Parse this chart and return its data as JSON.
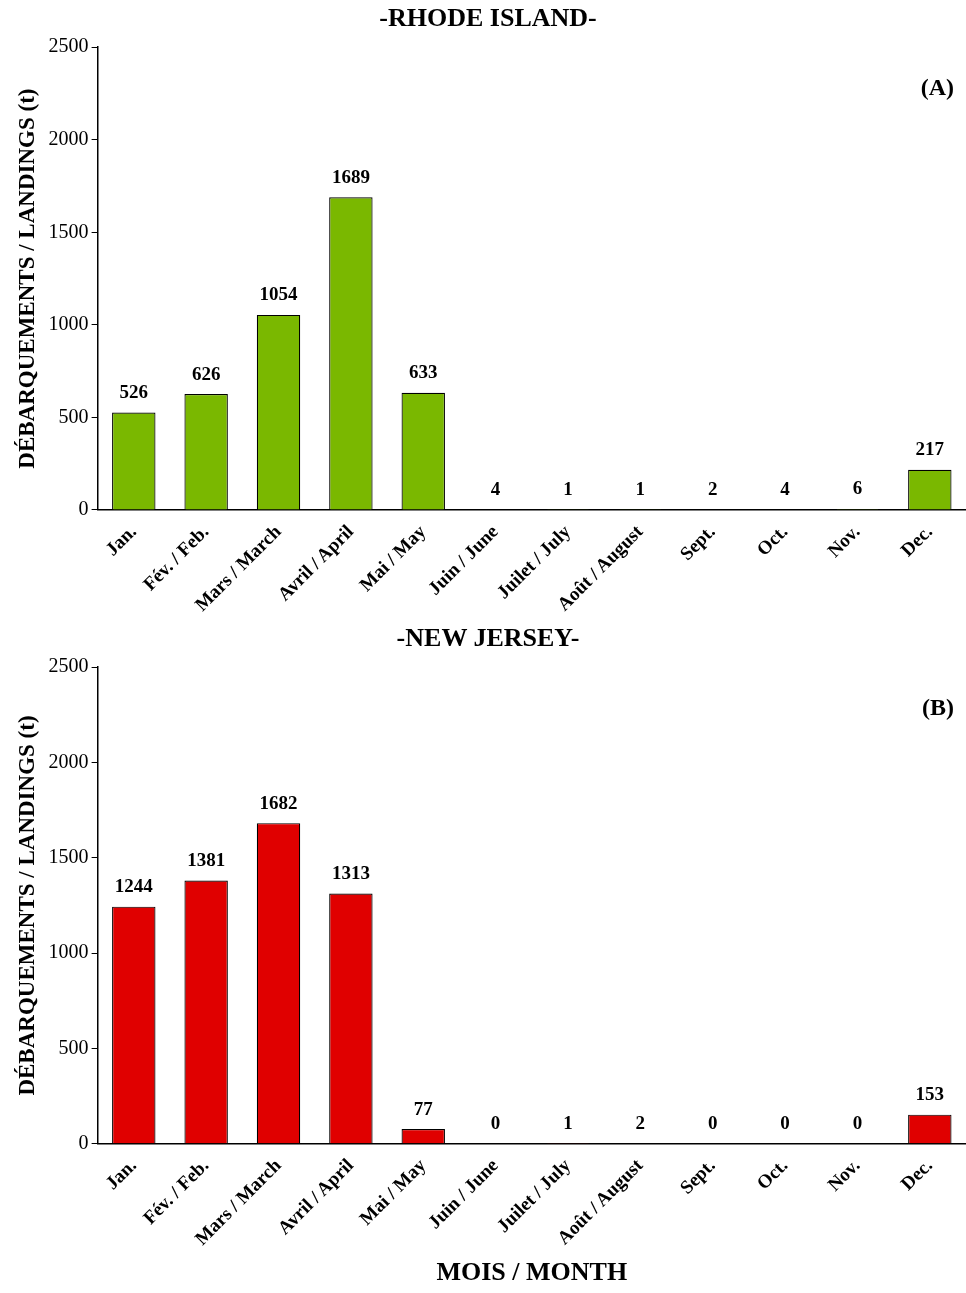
{
  "chart_data": [
    {
      "type": "bar",
      "title": "-RHODE ISLAND-",
      "ylabel": "DÉBARQUEMENTS / LANDINGS (t)",
      "categories": [
        "Jan.",
        "Fév. / Feb.",
        "Mars / March",
        "Avril / April",
        "Mai / May",
        "Juin / June",
        "Juilet / July",
        "Août / August",
        "Sept.",
        "Oct.",
        "Nov.",
        "Dec."
      ],
      "values": [
        526,
        626,
        1054,
        1689,
        633,
        4,
        1,
        1,
        2,
        4,
        6,
        217
      ],
      "color": "#7ab800",
      "ylim": [
        0,
        2500
      ],
      "yticks": [
        0,
        500,
        1000,
        1500,
        2000,
        2500
      ],
      "grid": false,
      "legend": false,
      "data_labels": true,
      "annotations": [
        "(A)"
      ]
    },
    {
      "type": "bar",
      "title": "-NEW JERSEY-",
      "ylabel": "DÉBARQUEMENTS / LANDINGS (t)",
      "xlabel": "MOIS / MONTH",
      "categories": [
        "Jan.",
        "Fév. / Feb.",
        "Mars / March",
        "Avril / April",
        "Mai / May",
        "Juin / June",
        "Juilet / July",
        "Août / August",
        "Sept.",
        "Oct.",
        "Nov.",
        "Dec."
      ],
      "values": [
        1244,
        1381,
        1682,
        1313,
        77,
        0,
        1,
        2,
        0,
        0,
        0,
        153
      ],
      "color": "#e00000",
      "ylim": [
        0,
        2500
      ],
      "yticks": [
        0,
        500,
        1000,
        1500,
        2000,
        2500
      ],
      "grid": false,
      "legend": false,
      "data_labels": true,
      "annotations": [
        "(B)"
      ]
    }
  ]
}
